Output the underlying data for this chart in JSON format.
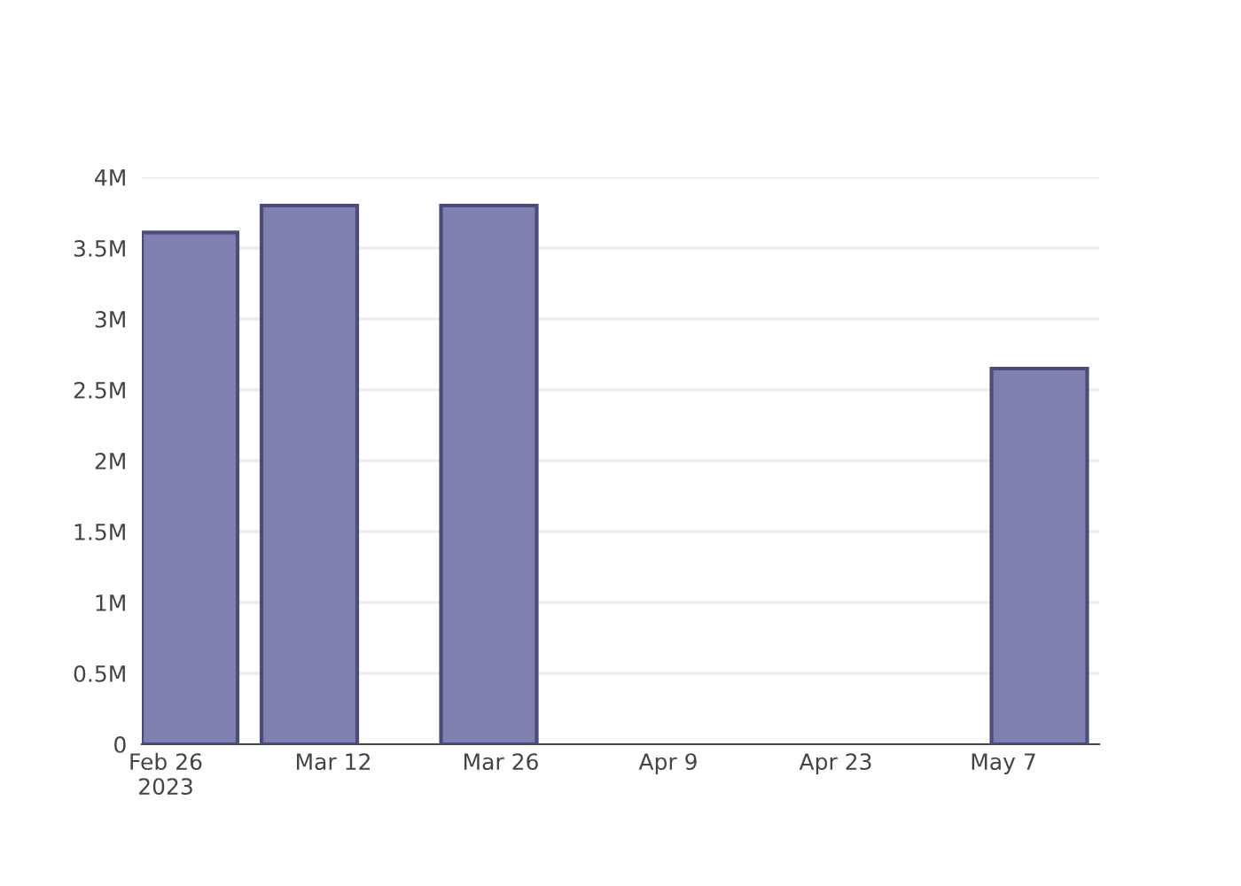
{
  "chart_data": {
    "type": "bar",
    "x": [
      "2023-02-28",
      "2023-03-10",
      "2023-03-25",
      "2023-05-10"
    ],
    "series": [
      {
        "color": "#7f7fb0",
        "values": [
          3610000,
          3800000,
          3800000,
          2650000
        ]
      }
    ],
    "xlim": [
      "2023-02-24",
      "2023-05-15"
    ],
    "xticks": [
      {
        "value": "2023-02-26",
        "label": "Feb 26\n2023"
      },
      {
        "value": "2023-03-12",
        "label": "Mar 12"
      },
      {
        "value": "2023-03-26",
        "label": "Mar 26"
      },
      {
        "value": "2023-04-09",
        "label": "Apr 9"
      },
      {
        "value": "2023-04-23",
        "label": "Apr 23"
      },
      {
        "value": "2023-05-07",
        "label": "May 7"
      }
    ],
    "ylim": [
      0,
      4000000
    ],
    "yticks": [
      0,
      {
        "value": 500000,
        "label": "0.5M"
      },
      {
        "value": 1000000,
        "label": "1M"
      },
      {
        "value": 1500000,
        "label": "1.5M"
      },
      {
        "value": 2000000,
        "label": "2M"
      },
      {
        "value": 2500000,
        "label": "2.5M"
      },
      {
        "value": 3000000,
        "label": "3M"
      },
      {
        "value": 3500000,
        "label": "3.5M"
      },
      {
        "value": 4000000,
        "label": "4M"
      }
    ],
    "grid": "y"
  }
}
